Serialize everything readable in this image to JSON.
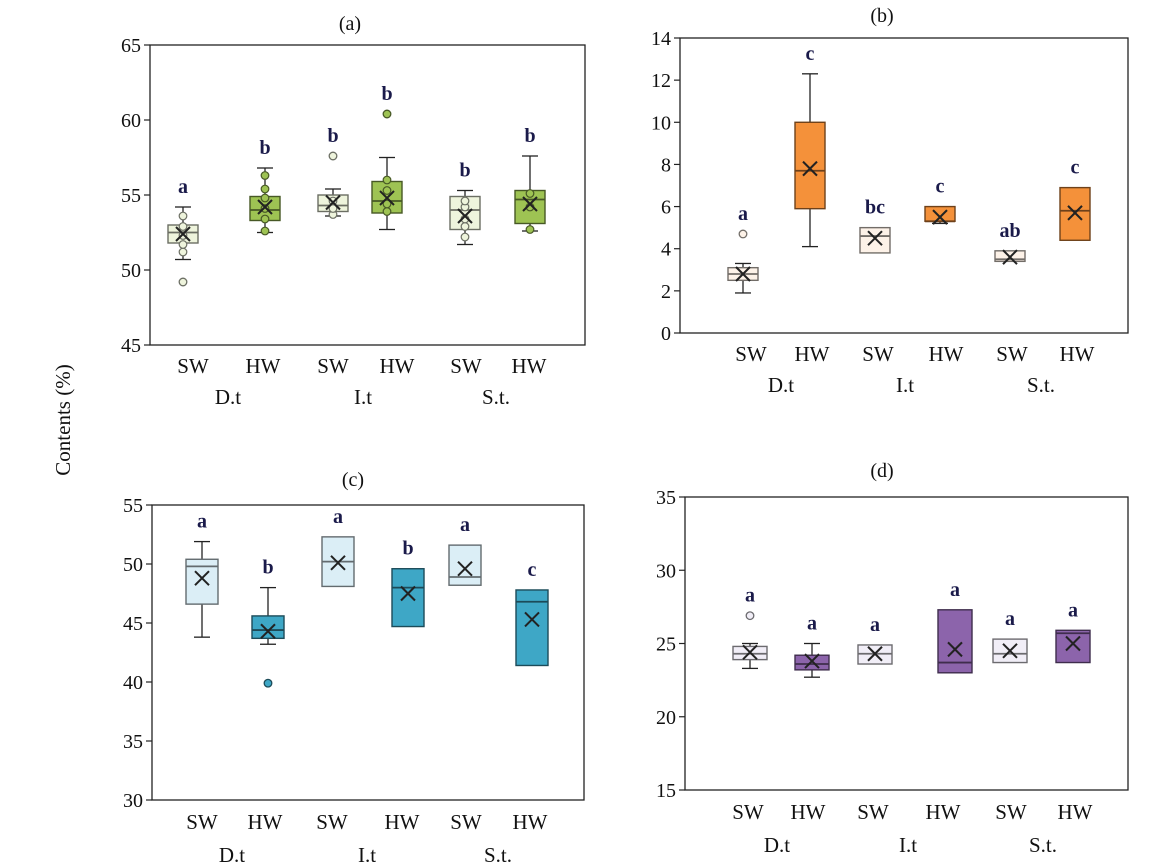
{
  "figure": {
    "y_label": "Contents (%)"
  },
  "chart_data": [
    {
      "type": "box",
      "title": "(a)",
      "ylim": [
        45,
        65
      ],
      "yticks": [
        45,
        50,
        55,
        60,
        65
      ],
      "group_labels": [
        "D.t",
        "I.t",
        "S.t."
      ],
      "categories": [
        "SW",
        "HW",
        "SW",
        "HW",
        "SW",
        "HW"
      ],
      "boxes": [
        {
          "min": 50.7,
          "q1": 51.8,
          "median": 52.5,
          "q3": 53.0,
          "max": 54.2,
          "mean": 52.4,
          "outliers": [
            49.2
          ],
          "points": [
            51.2,
            51.7,
            52.3,
            52.9,
            53.6
          ],
          "letter": "a",
          "fill": "#eef4dc"
        },
        {
          "min": 52.5,
          "q1": 53.3,
          "median": 54.0,
          "q3": 54.9,
          "max": 56.8,
          "mean": 54.2,
          "outliers": [],
          "points": [
            52.6,
            53.4,
            54.1,
            54.8,
            55.4,
            56.3
          ],
          "letter": "b",
          "fill": "#9ec353"
        },
        {
          "min": 53.6,
          "q1": 53.9,
          "median": 54.3,
          "q3": 55.0,
          "max": 55.4,
          "mean": 54.5,
          "outliers": [
            57.6
          ],
          "points": [
            53.7,
            54.1,
            54.6
          ],
          "letter": "b",
          "fill": "#eef4dc"
        },
        {
          "min": 52.7,
          "q1": 53.8,
          "median": 54.6,
          "q3": 55.9,
          "max": 57.5,
          "mean": 54.8,
          "outliers": [
            60.4
          ],
          "points": [
            53.9,
            54.4,
            55.3,
            56.0
          ],
          "letter": "b",
          "fill": "#9ec353"
        },
        {
          "min": 51.7,
          "q1": 52.7,
          "median": 54.0,
          "q3": 54.9,
          "max": 55.3,
          "mean": 53.6,
          "outliers": [],
          "points": [
            52.2,
            52.9,
            53.4,
            54.2,
            54.6
          ],
          "letter": "b",
          "fill": "#eef4dc"
        },
        {
          "min": 52.6,
          "q1": 53.1,
          "median": 54.7,
          "q3": 55.3,
          "max": 57.6,
          "mean": 54.4,
          "outliers": [],
          "points": [
            52.7,
            54.2,
            55.1
          ],
          "letter": "b",
          "fill": "#9ec353"
        }
      ]
    },
    {
      "type": "box",
      "title": "(b)",
      "ylim": [
        0,
        14
      ],
      "yticks": [
        0,
        2,
        4,
        6,
        8,
        10,
        12,
        14
      ],
      "group_labels": [
        "D.t",
        "I.t",
        "S.t."
      ],
      "categories": [
        "SW",
        "HW",
        "SW",
        "HW",
        "SW",
        "HW"
      ],
      "boxes": [
        {
          "min": 1.9,
          "q1": 2.5,
          "median": 2.8,
          "q3": 3.1,
          "max": 3.3,
          "mean": 2.8,
          "outliers": [
            4.7
          ],
          "points": [],
          "letter": "a",
          "fill": "#fdf2e8"
        },
        {
          "min": 4.1,
          "q1": 5.9,
          "median": 7.7,
          "q3": 10.0,
          "max": 12.3,
          "mean": 7.8,
          "outliers": [],
          "points": [],
          "letter": "c",
          "fill": "#f4913a"
        },
        {
          "min": 3.8,
          "q1": 3.8,
          "median": 4.6,
          "q3": 5.0,
          "max": 5.0,
          "mean": 4.5,
          "outliers": [],
          "points": [],
          "letter": "bc",
          "fill": "#fdf2e8"
        },
        {
          "min": 5.2,
          "q1": 5.3,
          "median": 5.3,
          "q3": 6.0,
          "max": 6.0,
          "mean": 5.5,
          "outliers": [],
          "points": [],
          "letter": "c",
          "fill": "#f4913a"
        },
        {
          "min": 3.4,
          "q1": 3.4,
          "median": 3.5,
          "q3": 3.9,
          "max": 3.9,
          "mean": 3.6,
          "outliers": [],
          "points": [],
          "letter": "ab",
          "fill": "#fdf2e8"
        },
        {
          "min": 4.4,
          "q1": 4.4,
          "median": 5.8,
          "q3": 6.9,
          "max": 6.9,
          "mean": 5.7,
          "outliers": [],
          "points": [],
          "letter": "c",
          "fill": "#f4913a"
        }
      ]
    },
    {
      "type": "box",
      "title": "(c)",
      "ylim": [
        30,
        55
      ],
      "yticks": [
        30,
        35,
        40,
        45,
        50,
        55
      ],
      "group_labels": [
        "D.t",
        "I.t",
        "S.t."
      ],
      "categories": [
        "SW",
        "HW",
        "SW",
        "HW",
        "SW",
        "HW"
      ],
      "boxes": [
        {
          "min": 43.8,
          "q1": 46.6,
          "median": 49.8,
          "q3": 50.4,
          "max": 51.9,
          "mean": 48.8,
          "outliers": [],
          "points": [],
          "letter": "a",
          "fill": "#dbeef6"
        },
        {
          "min": 43.2,
          "q1": 43.7,
          "median": 44.4,
          "q3": 45.6,
          "max": 48.0,
          "mean": 44.3,
          "outliers": [
            39.9
          ],
          "points": [],
          "letter": "b",
          "fill": "#3ea7c6"
        },
        {
          "min": 48.1,
          "q1": 48.1,
          "median": 50.2,
          "q3": 52.3,
          "max": 52.3,
          "mean": 50.1,
          "outliers": [],
          "points": [],
          "letter": "a",
          "fill": "#dbeef6"
        },
        {
          "min": 44.7,
          "q1": 44.7,
          "median": 48.0,
          "q3": 49.6,
          "max": 49.6,
          "mean": 47.5,
          "outliers": [],
          "points": [],
          "letter": "b",
          "fill": "#3ea7c6"
        },
        {
          "min": 48.2,
          "q1": 48.2,
          "median": 48.9,
          "q3": 51.6,
          "max": 51.6,
          "mean": 49.6,
          "outliers": [],
          "points": [],
          "letter": "a",
          "fill": "#dbeef6"
        },
        {
          "min": 41.4,
          "q1": 41.4,
          "median": 46.8,
          "q3": 47.8,
          "max": 47.8,
          "mean": 45.3,
          "outliers": [],
          "points": [],
          "letter": "c",
          "fill": "#3ea7c6"
        }
      ]
    },
    {
      "type": "box",
      "title": "(d)",
      "ylim": [
        15,
        35
      ],
      "yticks": [
        15,
        20,
        25,
        30,
        35
      ],
      "group_labels": [
        "D.t",
        "I.t",
        "S.t."
      ],
      "categories": [
        "SW",
        "HW",
        "SW",
        "HW",
        "SW",
        "HW"
      ],
      "boxes": [
        {
          "min": 23.3,
          "q1": 23.9,
          "median": 24.3,
          "q3": 24.8,
          "max": 25.0,
          "mean": 24.4,
          "outliers": [
            26.9
          ],
          "points": [],
          "letter": "a",
          "fill": "#f1eef7"
        },
        {
          "min": 22.7,
          "q1": 23.2,
          "median": 23.6,
          "q3": 24.2,
          "max": 25.0,
          "mean": 23.8,
          "outliers": [],
          "points": [],
          "letter": "a",
          "fill": "#8c64ab"
        },
        {
          "min": 23.6,
          "q1": 23.6,
          "median": 24.3,
          "q3": 24.9,
          "max": 24.9,
          "mean": 24.3,
          "outliers": [],
          "points": [],
          "letter": "a",
          "fill": "#f1eef7"
        },
        {
          "min": 23.0,
          "q1": 23.0,
          "median": 23.7,
          "q3": 27.3,
          "max": 27.3,
          "mean": 24.6,
          "outliers": [],
          "points": [],
          "letter": "a",
          "fill": "#8c64ab"
        },
        {
          "min": 23.7,
          "q1": 23.7,
          "median": 24.3,
          "q3": 25.3,
          "max": 25.3,
          "mean": 24.5,
          "outliers": [],
          "points": [],
          "letter": "a",
          "fill": "#f1eef7"
        },
        {
          "min": 23.7,
          "q1": 23.7,
          "median": 25.7,
          "q3": 25.9,
          "max": 25.9,
          "mean": 25.0,
          "outliers": [],
          "points": [],
          "letter": "a",
          "fill": "#8c64ab"
        }
      ]
    }
  ]
}
